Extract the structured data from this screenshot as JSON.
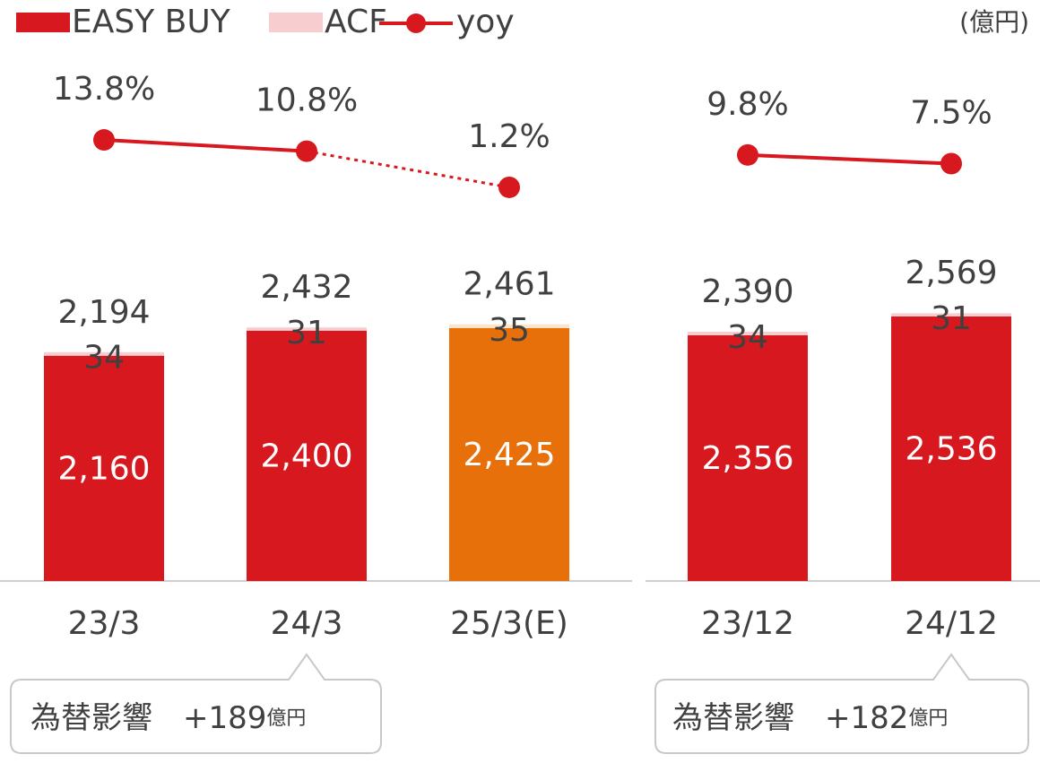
{
  "chart_data": {
    "type": "bar",
    "unit": "(億円)",
    "categories": [
      "23/3",
      "24/3",
      "25/3(E)",
      "23/12",
      "24/12"
    ],
    "estimate": [
      false,
      false,
      true,
      false,
      false
    ],
    "series": [
      {
        "name": "EASY BUY",
        "type": "bar",
        "color": "#d7191f",
        "estimate_color": "#e8700a",
        "values": [
          2160,
          2400,
          2425,
          2356,
          2536
        ],
        "value_labels": [
          "2,160",
          "2,400",
          "2,425",
          "2,356",
          "2,536"
        ]
      },
      {
        "name": "ACF",
        "type": "bar",
        "color": "#f8cdd0",
        "estimate_color": "#fde3c8",
        "values": [
          34,
          31,
          35,
          34,
          31
        ]
      },
      {
        "name": "yoy",
        "type": "line",
        "axis": "y2",
        "color": "#d7191f",
        "values": [
          13.8,
          10.8,
          1.2,
          9.8,
          7.5
        ],
        "value_labels": [
          "13.8%",
          "10.8%",
          "1.2%",
          "9.8%",
          "7.5%"
        ]
      }
    ],
    "totals": [
      2194,
      2432,
      2461,
      2390,
      2569
    ],
    "total_labels": [
      "2,194",
      "2,432",
      "2,461",
      "2,390",
      "2,569"
    ],
    "ylim": [
      0,
      3000
    ],
    "y2lim": [
      0,
      20
    ],
    "annotations": [
      {
        "text": "為替影響",
        "amount": "+189",
        "unit": "億円"
      },
      {
        "text": "為替影響",
        "amount": "+182",
        "unit": "億円"
      }
    ]
  }
}
